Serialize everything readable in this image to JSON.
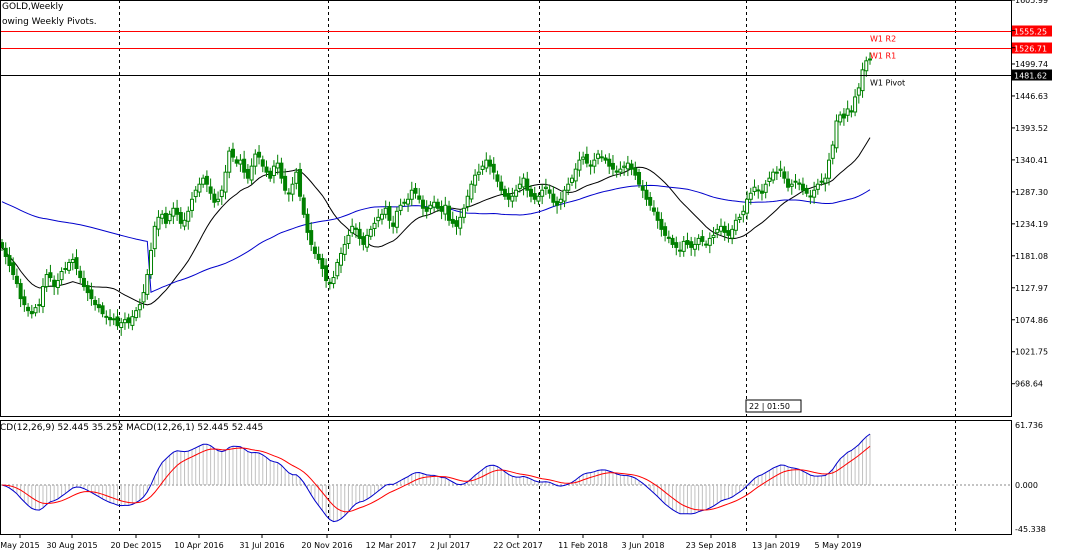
{
  "header": {
    "symbol_title": "GOLD,Weekly",
    "indicator_note": "owing Weekly Pivots."
  },
  "macd_legend": "CD(12,26,9) 52.445 35.252 MACD(12,26,1) 52.445 52.445",
  "time_marker": "22 | 01:50",
  "colors": {
    "candle": "#008000",
    "ma_fast": "#000000",
    "ma_slow": "#0000cc",
    "pivot_line": "#000000",
    "resistance": "#ff0000",
    "macd_line": "#0000cc",
    "signal_line": "#ff0000",
    "histogram": "#c0c0c0",
    "grid": "#000000"
  },
  "chart_data": [
    {
      "type": "candlestick",
      "title": "GOLD,Weekly",
      "x_tick_labels": [
        "May 2015",
        "30 Aug 2015",
        "20 Dec 2015",
        "10 Apr 2016",
        "31 Jul 2016",
        "20 Nov 2016",
        "12 Mar 2017",
        "2 Jul 2017",
        "22 Oct 2017",
        "11 Feb 2018",
        "3 Jun 2018",
        "23 Sep 2018",
        "13 Jan 2019",
        "5 May 2019"
      ],
      "y_tick_labels": [
        "1605.99",
        "1555.25",
        "1526.71",
        "1499.74",
        "1481.62",
        "1446.63",
        "1393.52",
        "1340.41",
        "1287.30",
        "1234.19",
        "1181.08",
        "1127.97",
        "1074.86",
        "1021.75",
        "968.64"
      ],
      "ylim": [
        915,
        1606
      ],
      "grid": "vertical dotted lines",
      "price_levels": [
        {
          "name": "W1 R2",
          "value": 1555.25
        },
        {
          "name": "W1 R1",
          "value": 1526.71
        },
        {
          "name": "W1 Pivot",
          "value": 1481.62
        }
      ],
      "close_approx": [
        1195,
        1180,
        1165,
        1150,
        1135,
        1110,
        1100,
        1090,
        1085,
        1095,
        1100,
        1130,
        1150,
        1145,
        1130,
        1140,
        1155,
        1160,
        1170,
        1175,
        1160,
        1145,
        1130,
        1120,
        1110,
        1100,
        1095,
        1085,
        1080,
        1075,
        1075,
        1065,
        1070,
        1075,
        1070,
        1080,
        1090,
        1100,
        1120,
        1150,
        1190,
        1230,
        1245,
        1250,
        1235,
        1250,
        1260,
        1250,
        1235,
        1240,
        1255,
        1275,
        1290,
        1300,
        1310,
        1300,
        1285,
        1270,
        1275,
        1290,
        1320,
        1355,
        1345,
        1335,
        1340,
        1320,
        1310,
        1330,
        1350,
        1345,
        1330,
        1320,
        1310,
        1330,
        1335,
        1310,
        1290,
        1285,
        1300,
        1320,
        1280,
        1250,
        1220,
        1200,
        1185,
        1175,
        1160,
        1140,
        1135,
        1145,
        1170,
        1185,
        1200,
        1215,
        1230,
        1225,
        1210,
        1200,
        1215,
        1225,
        1235,
        1245,
        1250,
        1260,
        1240,
        1230,
        1255,
        1265,
        1270,
        1275,
        1290,
        1285,
        1275,
        1260,
        1255,
        1265,
        1270,
        1260,
        1255,
        1265,
        1240,
        1235,
        1230,
        1245,
        1260,
        1280,
        1300,
        1315,
        1320,
        1330,
        1340,
        1330,
        1320,
        1305,
        1290,
        1280,
        1275,
        1280,
        1290,
        1300,
        1310,
        1290,
        1280,
        1275,
        1280,
        1290,
        1295,
        1285,
        1270,
        1265,
        1275,
        1290,
        1300,
        1310,
        1325,
        1340,
        1345,
        1335,
        1330,
        1340,
        1350,
        1345,
        1340,
        1330,
        1325,
        1320,
        1325,
        1330,
        1335,
        1325,
        1315,
        1300,
        1290,
        1275,
        1265,
        1255,
        1240,
        1225,
        1215,
        1210,
        1200,
        1195,
        1190,
        1205,
        1200,
        1195,
        1200,
        1210,
        1205,
        1200,
        1210,
        1215,
        1225,
        1230,
        1220,
        1215,
        1225,
        1240,
        1245,
        1255,
        1275,
        1285,
        1295,
        1290,
        1285,
        1300,
        1310,
        1320,
        1320,
        1325,
        1310,
        1295,
        1300,
        1305,
        1300,
        1290,
        1285,
        1280,
        1290,
        1300,
        1305,
        1310,
        1340,
        1365,
        1405,
        1415,
        1410,
        1425,
        1420,
        1445,
        1460,
        1490,
        1505,
        1508
      ]
    },
    {
      "type": "line",
      "title": "MACD(12,26,9)",
      "series": [
        {
          "name": "MACD(12,26,9)",
          "last_value": 52.445
        },
        {
          "name": "Signal",
          "last_value": 35.252
        }
      ],
      "y_tick_labels": [
        "61.736",
        "0.000",
        "-45.338"
      ],
      "ylim": [
        -45.338,
        61.736
      ]
    }
  ]
}
